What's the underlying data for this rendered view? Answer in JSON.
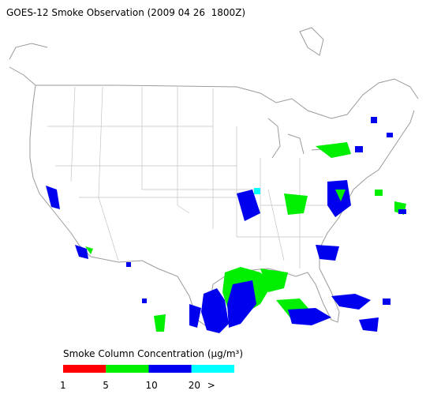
{
  "title": "GOES-12 Smoke Observation (2009 04 26  1800Z)",
  "legend": {
    "title": "Smoke Column Concentration (μg/m³)",
    "colors": [
      "#ff0000",
      "#00ee00",
      "#0000ee",
      "#00ffff"
    ],
    "labels": [
      "1",
      "5",
      "10",
      "20",
      ">"
    ]
  }
}
